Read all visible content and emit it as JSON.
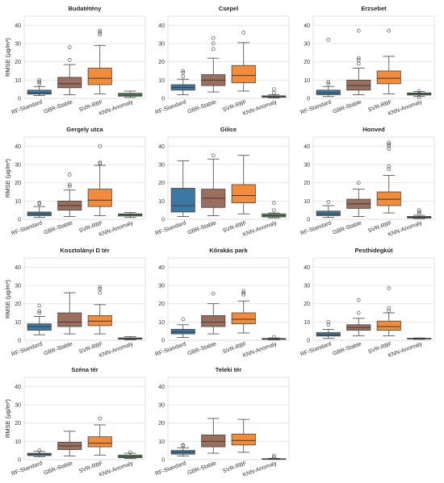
{
  "figure": {
    "ylabel": "RMSE (µg/m³)",
    "yticks": [
      "0",
      "10",
      "20",
      "30",
      "40"
    ],
    "categories": [
      "RF-Standard",
      "GBR-Stable",
      "SVR-RBF",
      "KNN-Anomaly"
    ],
    "colors": {
      "RF-Standard": "#3d78a3",
      "GBR-Stable": "#9c6e5e",
      "SVR-RBF": "#f28c3a",
      "KNN-Anomaly": "#4e8f4e",
      "grid": "#e2e2e2",
      "frame": "#d9d9d9",
      "median": "#3a3a3a"
    }
  },
  "chart_data": [
    {
      "type": "box",
      "title": "Budatétény",
      "ylim": [
        0,
        45
      ],
      "categories": [
        "RF-Standard",
        "GBR-Stable",
        "SVR-RBF",
        "KNN-Anomaly"
      ],
      "boxes": [
        {
          "whisker_low": 1.5,
          "q1": 2.3,
          "median": 3.0,
          "q3": 4.5,
          "whisker_high": 6.5,
          "outliers": [
            8.0,
            9.0,
            10.0
          ]
        },
        {
          "whisker_low": 2.0,
          "q1": 5.8,
          "median": 8.0,
          "q3": 11.5,
          "whisker_high": 18.5,
          "outliers": [
            21.0,
            28.0
          ]
        },
        {
          "whisker_low": 2.5,
          "q1": 7.5,
          "median": 11.0,
          "q3": 16.5,
          "whisker_high": 29.0,
          "outliers": [
            35.0,
            36.0,
            37.0
          ]
        },
        {
          "whisker_low": 0.5,
          "q1": 1.2,
          "median": 1.8,
          "q3": 2.8,
          "whisker_high": 4.0,
          "outliers": []
        }
      ]
    },
    {
      "type": "box",
      "title": "Csepel",
      "ylim": [
        0,
        45
      ],
      "categories": [
        "RF-Standard",
        "GBR-Stable",
        "SVR-RBF",
        "KNN-Anomaly"
      ],
      "boxes": [
        {
          "whisker_low": 2.0,
          "q1": 4.5,
          "median": 6.0,
          "q3": 7.5,
          "whisker_high": 10.5,
          "outliers": [
            12.0,
            14.0,
            15.0
          ]
        },
        {
          "whisker_low": 3.5,
          "q1": 7.0,
          "median": 10.0,
          "q3": 13.0,
          "whisker_high": 22.0,
          "outliers": [
            27.0,
            30.0,
            33.0
          ]
        },
        {
          "whisker_low": 4.0,
          "q1": 8.5,
          "median": 12.5,
          "q3": 18.0,
          "whisker_high": 30.5,
          "outliers": [
            36.0
          ]
        },
        {
          "whisker_low": 0.3,
          "q1": 0.6,
          "median": 0.9,
          "q3": 1.4,
          "whisker_high": 2.0,
          "outliers": [
            3.0,
            5.0
          ]
        }
      ]
    },
    {
      "type": "box",
      "title": "Erzsebet",
      "ylim": [
        0,
        45
      ],
      "categories": [
        "RF-Standard",
        "GBR-Stable",
        "SVR-RBF",
        "KNN-Anomaly"
      ],
      "boxes": [
        {
          "whisker_low": 1.0,
          "q1": 2.0,
          "median": 3.0,
          "q3": 4.5,
          "whisker_high": 6.5,
          "outliers": [
            8.0,
            9.0,
            32.0
          ]
        },
        {
          "whisker_low": 2.0,
          "q1": 4.5,
          "median": 7.0,
          "q3": 10.0,
          "whisker_high": 16.5,
          "outliers": [
            19.0,
            21.0,
            22.0,
            37.0
          ]
        },
        {
          "whisker_low": 2.5,
          "q1": 8.0,
          "median": 11.0,
          "q3": 15.0,
          "whisker_high": 23.0,
          "outliers": [
            37.0
          ]
        },
        {
          "whisker_low": 1.0,
          "q1": 1.8,
          "median": 2.5,
          "q3": 3.0,
          "whisker_high": 3.8,
          "outliers": [
            0.6,
            4.0
          ]
        }
      ]
    },
    {
      "type": "box",
      "title": "Gergely utca",
      "ylim": [
        0,
        45
      ],
      "categories": [
        "RF-Standard",
        "GBR-Stable",
        "SVR-RBF",
        "KNN-Anomaly"
      ],
      "boxes": [
        {
          "whisker_low": 1.0,
          "q1": 2.0,
          "median": 3.0,
          "q3": 4.0,
          "whisker_high": 7.0,
          "outliers": [
            8.5,
            9.0
          ]
        },
        {
          "whisker_low": 1.5,
          "q1": 5.0,
          "median": 7.5,
          "q3": 10.0,
          "whisker_high": 16.0,
          "outliers": [
            18.0,
            19.0,
            24.5
          ]
        },
        {
          "whisker_low": 2.0,
          "q1": 7.0,
          "median": 10.5,
          "q3": 16.5,
          "whisker_high": 29.5,
          "outliers": [
            30.5,
            31.0,
            40.0
          ]
        },
        {
          "whisker_low": 1.0,
          "q1": 1.8,
          "median": 2.5,
          "q3": 3.0,
          "whisker_high": 3.8,
          "outliers": []
        }
      ]
    },
    {
      "type": "box",
      "title": "Gilice",
      "ylim": [
        0,
        45
      ],
      "categories": [
        "RF-Standard",
        "GBR-Stable",
        "SVR-RBF",
        "KNN-Anomaly"
      ],
      "boxes": [
        {
          "whisker_low": 1.5,
          "q1": 4.0,
          "median": 7.5,
          "q3": 17.0,
          "whisker_high": 32.0,
          "outliers": []
        },
        {
          "whisker_low": 2.0,
          "q1": 6.5,
          "median": 11.5,
          "q3": 16.5,
          "whisker_high": 33.0,
          "outliers": [
            35.0
          ]
        },
        {
          "whisker_low": 3.0,
          "q1": 9.0,
          "median": 13.0,
          "q3": 19.0,
          "whisker_high": 35.0,
          "outliers": []
        },
        {
          "whisker_low": 0.8,
          "q1": 1.3,
          "median": 2.0,
          "q3": 3.0,
          "whisker_high": 3.5,
          "outliers": [
            5.0,
            9.0
          ]
        }
      ]
    },
    {
      "type": "box",
      "title": "Honved",
      "ylim": [
        0,
        45
      ],
      "categories": [
        "RF-Standard",
        "GBR-Stable",
        "SVR-RBF",
        "KNN-Anomaly"
      ],
      "boxes": [
        {
          "whisker_low": 1.0,
          "q1": 2.0,
          "median": 3.0,
          "q3": 4.5,
          "whisker_high": 7.5,
          "outliers": [
            9.5
          ]
        },
        {
          "whisker_low": 1.5,
          "q1": 6.0,
          "median": 8.5,
          "q3": 11.0,
          "whisker_high": 16.5,
          "outliers": [
            20.0
          ]
        },
        {
          "whisker_low": 3.5,
          "q1": 7.5,
          "median": 11.0,
          "q3": 15.0,
          "whisker_high": 24.0,
          "outliers": [
            27.5,
            29.0,
            38.5,
            40.0,
            41.0,
            42.0
          ]
        },
        {
          "whisker_low": 0.4,
          "q1": 0.7,
          "median": 1.1,
          "q3": 1.6,
          "whisker_high": 2.2,
          "outliers": [
            3.0,
            4.0,
            5.0
          ]
        }
      ]
    },
    {
      "type": "box",
      "title": "Kosztolányi D tér",
      "ylim": [
        0,
        45
      ],
      "categories": [
        "RF-Standard",
        "GBR-Stable",
        "SVR-RBF",
        "KNN-Anomaly"
      ],
      "boxes": [
        {
          "whisker_low": 3.0,
          "q1": 5.5,
          "median": 7.5,
          "q3": 9.0,
          "whisker_high": 13.0,
          "outliers": [
            15.0,
            16.0,
            19.0
          ]
        },
        {
          "whisker_low": 3.5,
          "q1": 7.5,
          "median": 10.0,
          "q3": 15.0,
          "whisker_high": 26.0,
          "outliers": []
        },
        {
          "whisker_low": 3.5,
          "q1": 8.0,
          "median": 10.5,
          "q3": 13.5,
          "whisker_high": 19.5,
          "outliers": [
            26.0,
            28.0,
            29.0
          ]
        },
        {
          "whisker_low": 0.3,
          "q1": 0.6,
          "median": 0.9,
          "q3": 1.3,
          "whisker_high": 2.0,
          "outliers": []
        }
      ]
    },
    {
      "type": "box",
      "title": "Kőrakás park",
      "ylim": [
        0,
        45
      ],
      "categories": [
        "RF-Standard",
        "GBR-Stable",
        "SVR-RBF",
        "KNN-Anomaly"
      ],
      "boxes": [
        {
          "whisker_low": 1.5,
          "q1": 3.5,
          "median": 4.5,
          "q3": 6.0,
          "whisker_high": 8.5,
          "outliers": [
            11.5
          ]
        },
        {
          "whisker_low": 3.5,
          "q1": 7.5,
          "median": 10.0,
          "q3": 13.5,
          "whisker_high": 20.0,
          "outliers": [
            25.5
          ]
        },
        {
          "whisker_low": 4.0,
          "q1": 9.0,
          "median": 11.5,
          "q3": 15.0,
          "whisker_high": 21.5,
          "outliers": [
            25.0,
            26.0,
            27.0
          ]
        },
        {
          "whisker_low": 0.2,
          "q1": 0.5,
          "median": 0.8,
          "q3": 1.0,
          "whisker_high": 1.3,
          "outliers": [
            1.8
          ]
        }
      ]
    },
    {
      "type": "box",
      "title": "Pesthidegkút",
      "ylim": [
        0,
        45
      ],
      "categories": [
        "RF-Standard",
        "GBR-Stable",
        "SVR-RBF",
        "KNN-Anomaly"
      ],
      "boxes": [
        {
          "whisker_low": 1.0,
          "q1": 2.3,
          "median": 3.0,
          "q3": 4.2,
          "whisker_high": 6.0,
          "outliers": [
            8.5,
            10.0
          ]
        },
        {
          "whisker_low": 2.5,
          "q1": 5.5,
          "median": 7.0,
          "q3": 8.5,
          "whisker_high": 12.0,
          "outliers": [
            15.0,
            22.0
          ]
        },
        {
          "whisker_low": 2.5,
          "q1": 5.5,
          "median": 7.5,
          "q3": 10.5,
          "whisker_high": 15.0,
          "outliers": [
            16.0,
            17.5,
            28.5
          ]
        },
        {
          "whisker_low": 0.5,
          "q1": 0.7,
          "median": 0.9,
          "q3": 1.1,
          "whisker_high": 1.3,
          "outliers": []
        }
      ]
    },
    {
      "type": "box",
      "title": "Széna tér",
      "ylim": [
        0,
        45
      ],
      "categories": [
        "RF-Standard",
        "GBR-Stable",
        "SVR-RBF",
        "KNN-Anomaly"
      ],
      "boxes": [
        {
          "whisker_low": 1.5,
          "q1": 2.2,
          "median": 2.8,
          "q3": 3.5,
          "whisker_high": 4.5,
          "outliers": [
            5.0
          ]
        },
        {
          "whisker_low": 2.0,
          "q1": 5.5,
          "median": 7.5,
          "q3": 9.5,
          "whisker_high": 15.5,
          "outliers": []
        },
        {
          "whisker_low": 2.5,
          "q1": 7.0,
          "median": 9.0,
          "q3": 12.5,
          "whisker_high": 19.0,
          "outliers": [
            22.5
          ]
        },
        {
          "whisker_low": 0.6,
          "q1": 1.0,
          "median": 1.6,
          "q3": 2.5,
          "whisker_high": 3.5,
          "outliers": [
            4.0
          ]
        }
      ]
    },
    {
      "type": "box",
      "title": "Teleki tér",
      "ylim": [
        0,
        45
      ],
      "categories": [
        "RF-Standard",
        "GBR-Stable",
        "SVR-RBF",
        "KNN-Anomaly"
      ],
      "boxes": [
        {
          "whisker_low": 2.0,
          "q1": 3.0,
          "median": 4.0,
          "q3": 5.0,
          "whisker_high": 6.5,
          "outliers": [
            7.5,
            8.0
          ]
        },
        {
          "whisker_low": 3.5,
          "q1": 7.0,
          "median": 10.0,
          "q3": 13.5,
          "whisker_high": 22.5,
          "outliers": []
        },
        {
          "whisker_low": 4.0,
          "q1": 8.0,
          "median": 10.5,
          "q3": 14.0,
          "whisker_high": 22.0,
          "outliers": []
        },
        {
          "whisker_low": 0.1,
          "q1": 0.2,
          "median": 0.3,
          "q3": 0.5,
          "whisker_high": 0.7,
          "outliers": [
            1.2,
            2.0
          ]
        }
      ]
    }
  ]
}
